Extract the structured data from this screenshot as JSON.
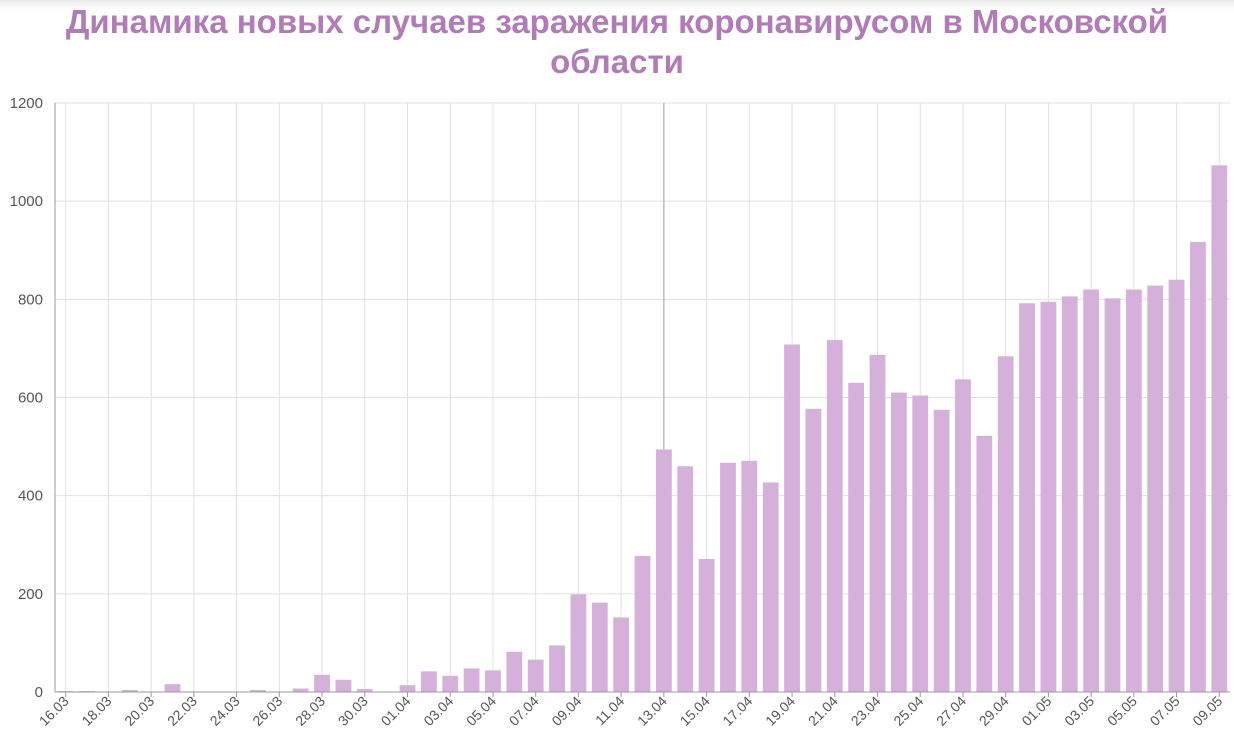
{
  "chart_data": {
    "type": "bar",
    "title": "Динамика новых случаев заражения коронавирусом в Московской области",
    "xlabel": "",
    "ylabel": "",
    "ylim": [
      0,
      1200
    ],
    "yticks": [
      "0",
      "200",
      "400",
      "600",
      "800",
      "1000",
      "1200"
    ],
    "categories": [
      "16.03",
      "17.03",
      "18.03",
      "19.03",
      "20.03",
      "21.03",
      "22.03",
      "23.03",
      "24.03",
      "25.03",
      "26.03",
      "27.03",
      "28.03",
      "29.03",
      "30.03",
      "31.03",
      "01.04",
      "02.04",
      "03.04",
      "04.04",
      "05.04",
      "06.04",
      "07.04",
      "08.04",
      "09.04",
      "10.04",
      "11.04",
      "12.04",
      "13.04",
      "14.04",
      "15.04",
      "16.04",
      "17.04",
      "18.04",
      "19.04",
      "20.04",
      "21.04",
      "22.04",
      "23.04",
      "24.04",
      "25.04",
      "26.04",
      "27.04",
      "28.04",
      "29.04",
      "30.04",
      "01.05",
      "02.05",
      "03.05",
      "04.05",
      "05.05",
      "06.05",
      "07.05",
      "08.05",
      "09.05"
    ],
    "xtick_labels": [
      "16.03",
      "",
      "18.03",
      "",
      "20.03",
      "",
      "22.03",
      "",
      "24.03",
      "",
      "26.03",
      "",
      "28.03",
      "",
      "30.03",
      "",
      "01.04",
      "",
      "03.04",
      "",
      "05.04",
      "",
      "07.04",
      "",
      "09.04",
      "",
      "11.04",
      "",
      "13.04",
      "",
      "15.04",
      "",
      "17.04",
      "",
      "19.04",
      "",
      "21.04",
      "",
      "23.04",
      "",
      "25.04",
      "",
      "27.04",
      "",
      "29.04",
      "",
      "01.05",
      "",
      "03.05",
      "",
      "05.05",
      "",
      "07.05",
      "",
      "09.05"
    ],
    "values": [
      2,
      2,
      0,
      4,
      0,
      16,
      0,
      0,
      0,
      4,
      0,
      7,
      35,
      25,
      6,
      0,
      14,
      42,
      33,
      48,
      44,
      82,
      66,
      95,
      199,
      182,
      152,
      277,
      494,
      460,
      271,
      467,
      471,
      427,
      708,
      577,
      717,
      630,
      687,
      610,
      604,
      575,
      637,
      522,
      684,
      792,
      795,
      806,
      820,
      802,
      820,
      828,
      840,
      917,
      1073
    ],
    "grid": true,
    "legend": "none",
    "bar_color": "#d5b0da",
    "title_color": "#b07bb7",
    "grid_color": "#e0e0e0"
  }
}
